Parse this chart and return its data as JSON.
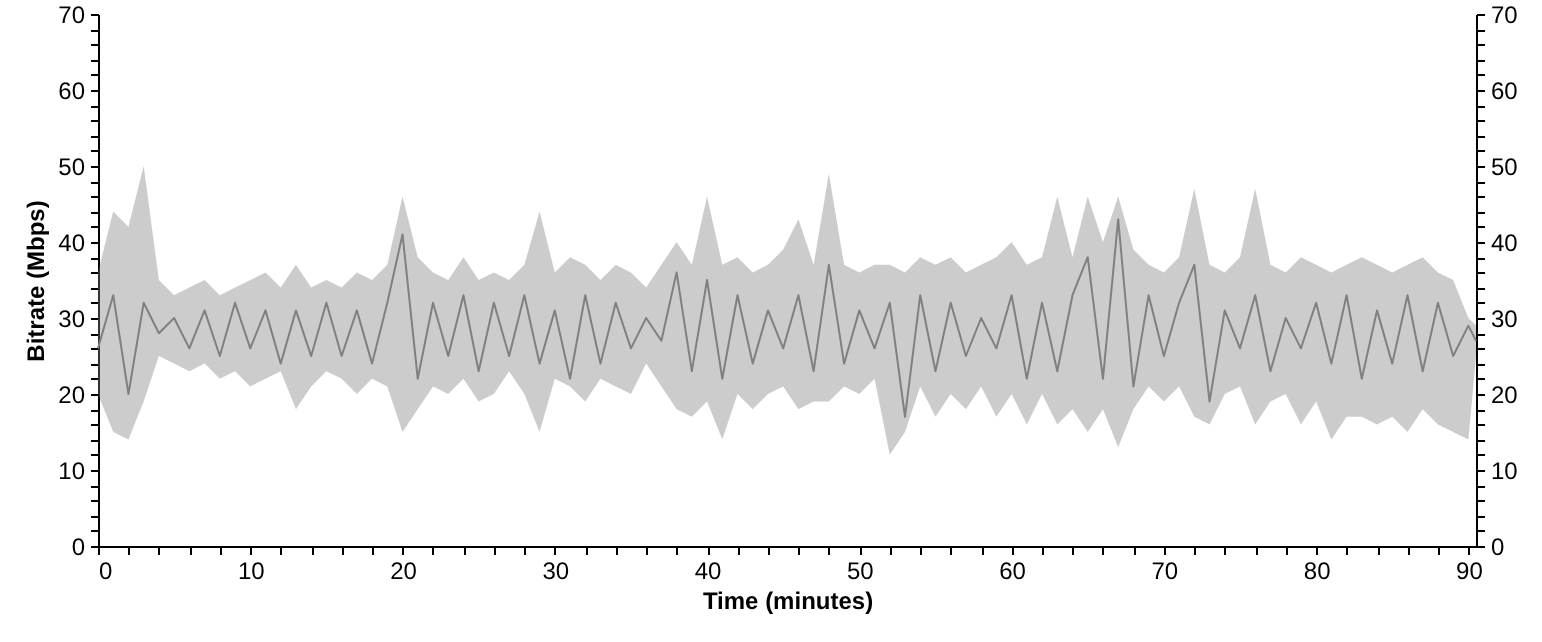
{
  "chart_data": {
    "type": "line",
    "xlabel": "Time (minutes)",
    "ylabel": "Bitrate (Mbps)",
    "x": [
      0,
      1,
      2,
      3,
      4,
      5,
      6,
      7,
      8,
      9,
      10,
      11,
      12,
      13,
      14,
      15,
      16,
      17,
      18,
      19,
      20,
      21,
      22,
      23,
      24,
      25,
      26,
      27,
      28,
      29,
      30,
      31,
      32,
      33,
      34,
      35,
      36,
      37,
      38,
      39,
      40,
      41,
      42,
      43,
      44,
      45,
      46,
      47,
      48,
      49,
      50,
      51,
      52,
      53,
      54,
      55,
      56,
      57,
      58,
      59,
      60,
      61,
      62,
      63,
      64,
      65,
      66,
      67,
      68,
      69,
      70,
      71,
      72,
      73,
      74,
      75,
      76,
      77,
      78,
      79,
      80,
      81,
      82,
      83,
      84,
      85,
      86,
      87,
      88,
      89,
      90,
      90.5
    ],
    "series": [
      {
        "color": "#808080",
        "values": [
          26,
          33,
          20,
          32,
          28,
          30,
          26,
          31,
          25,
          32,
          26,
          31,
          24,
          31,
          25,
          32,
          25,
          31,
          24,
          32,
          41,
          22,
          32,
          25,
          33,
          23,
          32,
          25,
          33,
          24,
          31,
          22,
          33,
          24,
          32,
          26,
          30,
          27,
          36,
          23,
          35,
          22,
          33,
          24,
          31,
          26,
          33,
          23,
          37,
          24,
          31,
          26,
          32,
          17,
          33,
          23,
          32,
          25,
          30,
          26,
          33,
          22,
          32,
          23,
          33,
          38,
          22,
          43,
          21,
          33,
          25,
          32,
          37,
          19,
          31,
          26,
          33,
          23,
          30,
          26,
          32,
          24,
          33,
          22,
          31,
          24,
          33,
          23,
          32,
          25,
          29,
          27
        ],
        "lower": [
          20,
          15,
          14,
          19,
          25,
          24,
          23,
          24,
          22,
          23,
          21,
          22,
          23,
          18,
          21,
          23,
          22,
          20,
          22,
          21,
          15,
          18,
          21,
          20,
          22,
          19,
          20,
          23,
          20,
          15,
          22,
          21,
          19,
          22,
          21,
          20,
          24,
          21,
          18,
          17,
          19,
          14,
          20,
          18,
          20,
          21,
          18,
          19,
          19,
          21,
          20,
          22,
          12,
          15,
          21,
          17,
          20,
          18,
          21,
          17,
          20,
          16,
          20,
          16,
          18,
          15,
          18,
          13,
          18,
          21,
          19,
          21,
          17,
          16,
          20,
          21,
          16,
          19,
          20,
          16,
          19,
          14,
          17,
          17,
          16,
          17,
          15,
          18,
          16,
          15,
          14,
          25
        ],
        "upper": [
          36,
          44,
          42,
          50,
          35,
          33,
          34,
          35,
          33,
          34,
          35,
          36,
          34,
          37,
          34,
          35,
          34,
          36,
          35,
          37,
          46,
          38,
          36,
          35,
          38,
          35,
          36,
          35,
          37,
          44,
          36,
          38,
          37,
          35,
          37,
          36,
          34,
          37,
          40,
          37,
          46,
          37,
          38,
          36,
          37,
          39,
          43,
          37,
          49,
          37,
          36,
          37,
          37,
          36,
          38,
          37,
          38,
          36,
          37,
          38,
          40,
          37,
          38,
          46,
          38,
          46,
          40,
          46,
          39,
          37,
          36,
          38,
          47,
          37,
          36,
          38,
          47,
          37,
          36,
          38,
          37,
          36,
          37,
          38,
          37,
          36,
          37,
          38,
          36,
          35,
          30,
          29
        ]
      }
    ],
    "xlim": [
      0,
      90.5
    ],
    "xticks": [
      0,
      {
        "value": 2,
        "label": null
      },
      {
        "value": 4,
        "label": null
      },
      {
        "value": 6,
        "label": null
      },
      {
        "value": 8,
        "label": null
      },
      10,
      {
        "value": 12,
        "label": null
      },
      {
        "value": 14,
        "label": null
      },
      {
        "value": 16,
        "label": null
      },
      {
        "value": 18,
        "label": null
      },
      20,
      {
        "value": 22,
        "label": null
      },
      {
        "value": 24,
        "label": null
      },
      {
        "value": 26,
        "label": null
      },
      {
        "value": 28,
        "label": null
      },
      30,
      {
        "value": 32,
        "label": null
      },
      {
        "value": 34,
        "label": null
      },
      {
        "value": 36,
        "label": null
      },
      {
        "value": 38,
        "label": null
      },
      40,
      {
        "value": 42,
        "label": null
      },
      {
        "value": 44,
        "label": null
      },
      {
        "value": 46,
        "label": null
      },
      {
        "value": 48,
        "label": null
      },
      50,
      {
        "value": 52,
        "label": null
      },
      {
        "value": 54,
        "label": null
      },
      {
        "value": 56,
        "label": null
      },
      {
        "value": 58,
        "label": null
      },
      60,
      {
        "value": 62,
        "label": null
      },
      {
        "value": 64,
        "label": null
      },
      {
        "value": 66,
        "label": null
      },
      {
        "value": 68,
        "label": null
      },
      70,
      {
        "value": 72,
        "label": null
      },
      {
        "value": 74,
        "label": null
      },
      {
        "value": 76,
        "label": null
      },
      {
        "value": 78,
        "label": null
      },
      80,
      {
        "value": 82,
        "label": null
      },
      {
        "value": 84,
        "label": null
      },
      {
        "value": 86,
        "label": null
      },
      {
        "value": 88,
        "label": null
      },
      90
    ],
    "ylim": [
      0,
      70
    ],
    "yticks": [
      0,
      {
        "value": 2,
        "label": null
      },
      {
        "value": 4,
        "label": null
      },
      {
        "value": 6,
        "label": null
      },
      {
        "value": 8,
        "label": null
      },
      10,
      {
        "value": 12,
        "label": null
      },
      {
        "value": 14,
        "label": null
      },
      {
        "value": 16,
        "label": null
      },
      {
        "value": 18,
        "label": null
      },
      20,
      {
        "value": 22,
        "label": null
      },
      {
        "value": 24,
        "label": null
      },
      {
        "value": 26,
        "label": null
      },
      {
        "value": 28,
        "label": null
      },
      30,
      {
        "value": 32,
        "label": null
      },
      {
        "value": 34,
        "label": null
      },
      {
        "value": 36,
        "label": null
      },
      {
        "value": 38,
        "label": null
      },
      40,
      {
        "value": 42,
        "label": null
      },
      {
        "value": 44,
        "label": null
      },
      {
        "value": 46,
        "label": null
      },
      {
        "value": 48,
        "label": null
      },
      50,
      {
        "value": 52,
        "label": null
      },
      {
        "value": 54,
        "label": null
      },
      {
        "value": 56,
        "label": null
      },
      {
        "value": 58,
        "label": null
      },
      60,
      {
        "value": 62,
        "label": null
      },
      {
        "value": 64,
        "label": null
      },
      {
        "value": 66,
        "label": null
      },
      {
        "value": 68,
        "label": null
      },
      70
    ],
    "y2lim": [
      0,
      70
    ],
    "y2ticks": [
      0,
      {
        "value": 2,
        "label": null
      },
      {
        "value": 4,
        "label": null
      },
      {
        "value": 6,
        "label": null
      },
      {
        "value": 8,
        "label": null
      },
      10,
      {
        "value": 12,
        "label": null
      },
      {
        "value": 14,
        "label": null
      },
      {
        "value": 16,
        "label": null
      },
      {
        "value": 18,
        "label": null
      },
      20,
      {
        "value": 22,
        "label": null
      },
      {
        "value": 24,
        "label": null
      },
      {
        "value": 26,
        "label": null
      },
      {
        "value": 28,
        "label": null
      },
      30,
      {
        "value": 32,
        "label": null
      },
      {
        "value": 34,
        "label": null
      },
      {
        "value": 36,
        "label": null
      },
      {
        "value": 38,
        "label": null
      },
      40,
      {
        "value": 42,
        "label": null
      },
      {
        "value": 44,
        "label": null
      },
      {
        "value": 46,
        "label": null
      },
      {
        "value": 48,
        "label": null
      },
      50,
      {
        "value": 52,
        "label": null
      },
      {
        "value": 54,
        "label": null
      },
      {
        "value": 56,
        "label": null
      },
      {
        "value": 58,
        "label": null
      },
      60,
      {
        "value": 62,
        "label": null
      },
      {
        "value": 64,
        "label": null
      },
      {
        "value": 66,
        "label": null
      },
      {
        "value": 68,
        "label": null
      },
      70
    ],
    "grid": false,
    "marker": "none",
    "line_style": "solid"
  }
}
